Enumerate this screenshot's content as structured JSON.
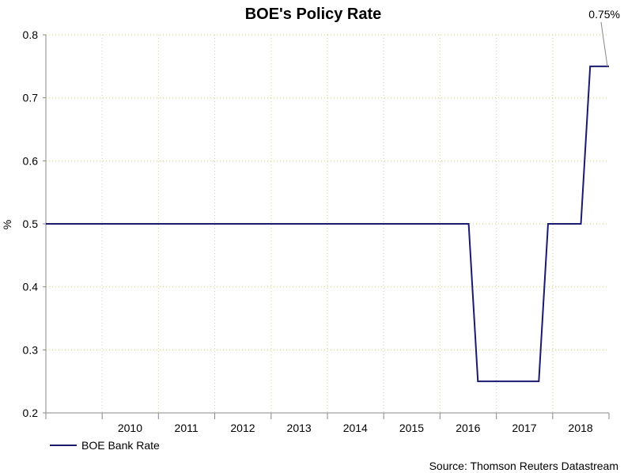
{
  "chart_data": {
    "type": "line",
    "title": "BOE's Policy Rate",
    "ylabel": "%",
    "xlabel": "",
    "ylim": [
      0.2,
      0.8
    ],
    "yticks": [
      0.2,
      0.3,
      0.4,
      0.5,
      0.6,
      0.7,
      0.8
    ],
    "xlim": [
      "2009-01-01",
      "2019-01-01"
    ],
    "xtick_labels": [
      "2010",
      "2011",
      "2012",
      "2013",
      "2014",
      "2015",
      "2016",
      "2017",
      "2018"
    ],
    "grid": true,
    "legend_position": "bottom-left",
    "series": [
      {
        "name": "BOE Bank Rate",
        "color": "#1a1a6e",
        "step": "post",
        "points": [
          {
            "x": "2009-01-01",
            "y": 0.5
          },
          {
            "x": "2016-08-04",
            "y": 0.25
          },
          {
            "x": "2017-11-02",
            "y": 0.5
          },
          {
            "x": "2018-08-02",
            "y": 0.75
          },
          {
            "x": "2019-01-01",
            "y": 0.75
          }
        ]
      }
    ],
    "annotations": [
      {
        "text": "0.75%",
        "x": "2019-01-01",
        "y": 0.75
      }
    ],
    "source": "Source: Thomson Reuters Datastream"
  }
}
